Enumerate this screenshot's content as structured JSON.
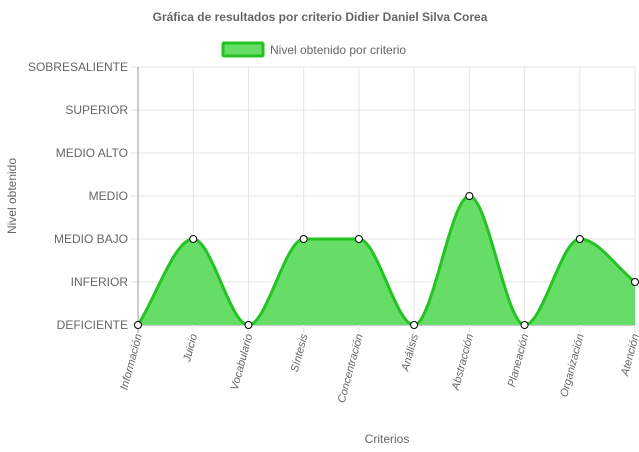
{
  "chart_data": {
    "type": "area",
    "title": "Gráfica de resultados por criterio Didier Daniel Silva Corea",
    "xlabel": "Criterios",
    "ylabel": "Nivel obtenido",
    "levels": [
      "DEFICIENTE",
      "INFERIOR",
      "MEDIO BAJO",
      "MEDIO",
      "MEDIO ALTO",
      "SUPERIOR",
      "SOBRESALIENTE"
    ],
    "ylim": [
      0,
      6
    ],
    "categories": [
      "Información",
      "Juicio",
      "Vocabulario",
      "Síntesis",
      "Concentración",
      "Análisis",
      "Abstracción",
      "Planeación",
      "Organización",
      "Atención"
    ],
    "series": [
      {
        "name": "Nivel obtenido por criterio",
        "values": [
          0,
          2,
          0,
          2,
          2,
          0,
          3,
          0,
          2,
          1
        ]
      }
    ],
    "legend_position": "top",
    "grid": true,
    "colors": {
      "fill": "#66dd66",
      "stroke": "#22c322",
      "grid": "#e5e5e5",
      "axis": "#999999"
    }
  }
}
